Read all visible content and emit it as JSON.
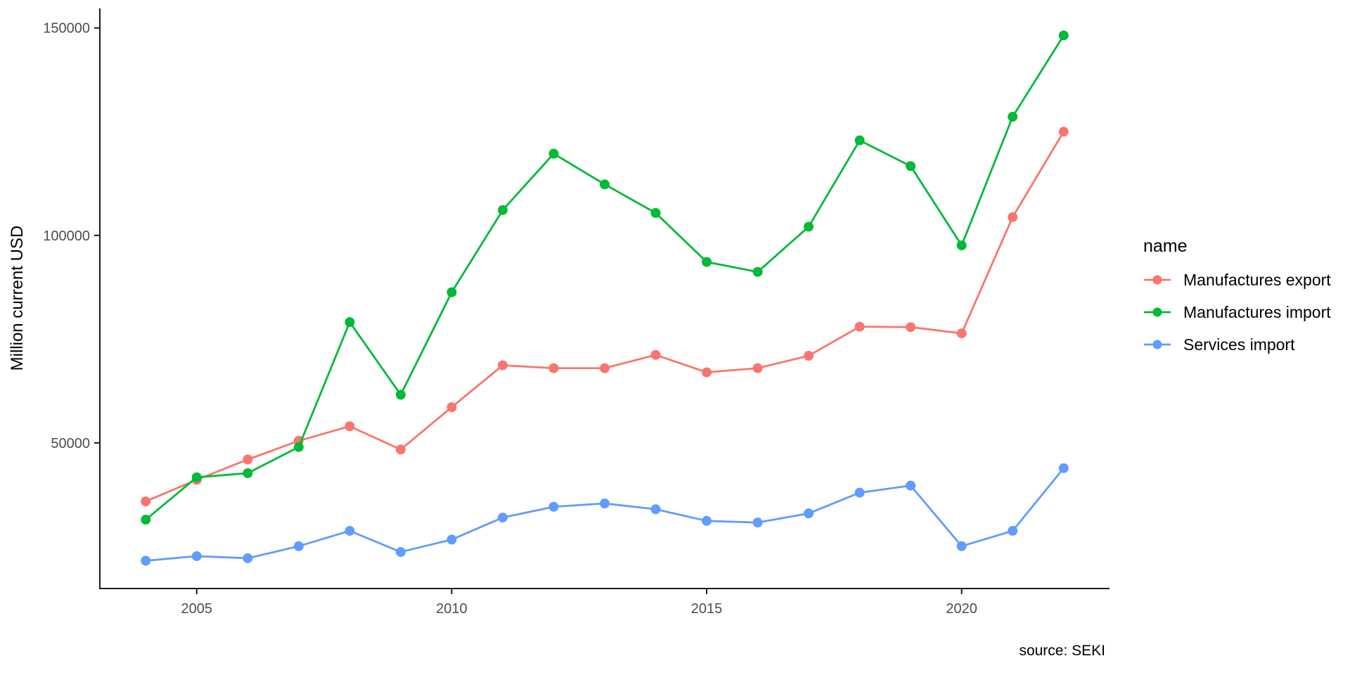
{
  "chart_data": {
    "type": "line",
    "title": "",
    "xlabel": "",
    "ylabel": "Million current USD",
    "x": [
      2004,
      2005,
      2006,
      2007,
      2008,
      2009,
      2010,
      2011,
      2012,
      2013,
      2014,
      2015,
      2016,
      2017,
      2018,
      2019,
      2020,
      2021,
      2022
    ],
    "series": [
      {
        "name": "Manufactures export",
        "color": "#F8766D",
        "values": [
          35900,
          41100,
          46000,
          50500,
          54000,
          48400,
          58600,
          68700,
          68000,
          68000,
          71200,
          67000,
          68000,
          71000,
          78000,
          77900,
          76400,
          104400,
          125000
        ]
      },
      {
        "name": "Manufactures import",
        "color": "#00BA38",
        "values": [
          31500,
          41700,
          42700,
          49000,
          79100,
          61600,
          86300,
          106100,
          119700,
          112300,
          105400,
          93600,
          91200,
          102100,
          122900,
          116700,
          97600,
          128600,
          148200
        ]
      },
      {
        "name": "Services import",
        "color": "#619CFF",
        "values": [
          21600,
          22700,
          22200,
          25100,
          28800,
          23700,
          26700,
          32000,
          34600,
          35400,
          34000,
          31200,
          30800,
          33000,
          38000,
          39700,
          25100,
          28800,
          43900
        ]
      }
    ],
    "xlim": [
      2003.1,
      2022.9
    ],
    "ylim": [
      14900,
      154700
    ],
    "x_ticks": [
      {
        "value": 2005,
        "label": "2005"
      },
      {
        "value": 2010,
        "label": "2010"
      },
      {
        "value": 2015,
        "label": "2015"
      },
      {
        "value": 2020,
        "label": "2020"
      }
    ],
    "y_ticks": [
      {
        "value": 50000,
        "label": "50000"
      },
      {
        "value": 100000,
        "label": "100000"
      },
      {
        "value": 150000,
        "label": "150000"
      }
    ],
    "grid": false,
    "legend_position": "right"
  },
  "legend": {
    "title": "name"
  },
  "caption": {
    "text": "source: SEKI"
  },
  "colors": {
    "axis_line": "#1a1a1a",
    "axis_text": "#4D4D4D",
    "background": "#ffffff"
  }
}
